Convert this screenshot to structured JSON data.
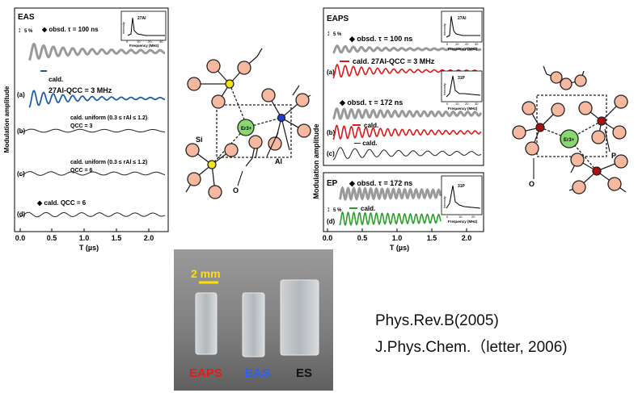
{
  "eas_panel": {
    "tag": "EAS",
    "scale": "5 %",
    "ylabel": "Modulation amplitude",
    "xlabel": "T (µs)",
    "xticks": [
      "0.0",
      "0.5",
      "1.0",
      "1.5",
      "2.0"
    ],
    "obsd_label": "obsd. τ = 100 ns",
    "calc_label": "cald.",
    "calc_qcc_label": "27Al-QCC = 3 MHz",
    "trace_a": "(a)",
    "trace_b": "(b)",
    "trace_b_label": "cald. uniform (0.3 ≤ rAl ≤ 1.2)",
    "trace_b_qcc": "QCC = 3",
    "trace_c": "(c)",
    "trace_c_label": "cald. uniform (0.3 ≤ rAl ≤ 1.2)",
    "trace_c_qcc": "QCC = 6",
    "trace_d": "(d)",
    "trace_d_label": "cald. QCC = 6",
    "inset_nucleus": "27Al",
    "inset_ylabel": "Intensity",
    "inset_xlabel": "Frequency (MHz)",
    "inset_xticks": [
      "0",
      "10",
      "20",
      "30"
    ]
  },
  "eaps_panel": {
    "tag": "EAPS",
    "scale": "5 %",
    "ylabel": "Modulation amplitude",
    "xlabel": "T (µs)",
    "xticks": [
      "0.0",
      "0.5",
      "1.0",
      "1.5",
      "2.0"
    ],
    "obsd_label_1": "obsd. τ = 100 ns",
    "calc_label_a": "cald. 27Al-QCC = 3 MHz",
    "trace_a": "(a)",
    "obsd_label_2": "obsd. τ = 172 ns",
    "calc_label_b": "cald.",
    "trace_b": "(b)",
    "calc_label_c": "cald.",
    "trace_c": "(c)",
    "inset1_nucleus": "27Al",
    "inset2_nucleus": "31P",
    "inset_ylabel": "Intensity",
    "inset_xlabel": "Frequency (MHz)",
    "inset_xticks": [
      "0",
      "10",
      "20",
      "30"
    ]
  },
  "ep_panel": {
    "tag": "EP",
    "scale": "5 %",
    "obsd_label": "obsd. τ = 172 ns",
    "calc_label": "cald.",
    "trace_d": "(d)",
    "inset_nucleus": "31P",
    "inset_ylabel": "Intensity",
    "inset_xlabel": "Frequency (MHz)",
    "inset_xticks": [
      "0",
      "10",
      "20"
    ]
  },
  "structure_left": {
    "center": "Er3+",
    "label_si": "Si",
    "label_al": "Al",
    "label_o": "O"
  },
  "structure_right": {
    "center": "Er3+",
    "label_p": "P",
    "label_o": "O"
  },
  "photo": {
    "scale_bar": "2 mm",
    "label_eaps": "EAPS",
    "label_eas": "EAS",
    "label_es": "ES"
  },
  "citations": [
    "Phys.Rev.B(2005)",
    "J.Phys.Chem.（letter, 2006)"
  ],
  "colors": {
    "obsd": "#999999",
    "cald_blue": "#1f5faa",
    "cald_red": "#e01818",
    "cald_green": "#2aa02a",
    "cald_black": "#222222",
    "atom_pink": "#f7b8a0",
    "si_yellow": "#f2e41a",
    "al_blue": "#1f3fd0",
    "er_green": "#88d870",
    "p_red": "#aa1010",
    "label_red": "#e31b1b",
    "label_blue": "#2a5fff"
  }
}
